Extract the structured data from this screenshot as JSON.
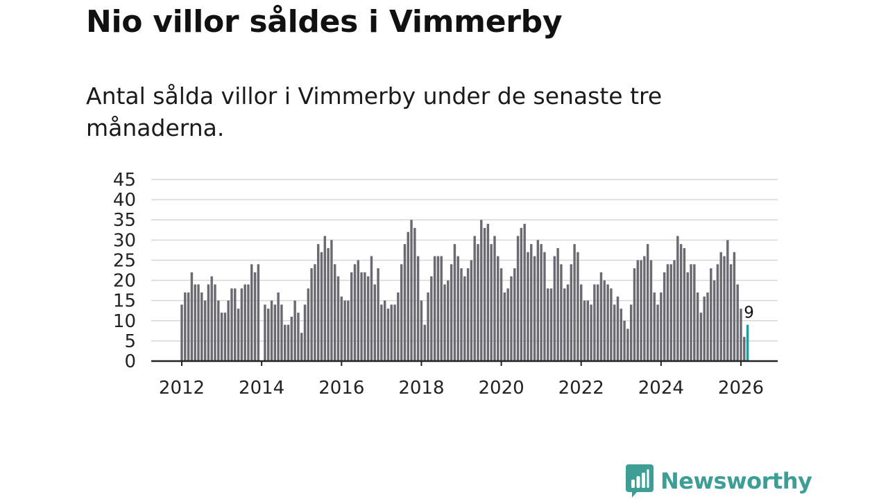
{
  "title": "Nio villor såldes i Vimmerby",
  "subtitle": "Antal sålda villor i Vimmerby under de senaste tre månaderna.",
  "brand": {
    "name": "Newsworthy",
    "icon": "bar-chart-badge-icon",
    "color": "#3d9e96"
  },
  "colors": {
    "bar": "#6b6a70",
    "highlight": "#1f9d9a",
    "grid": "#d6d6d6",
    "axis": "#222222"
  },
  "chart_data": {
    "type": "bar",
    "title": "Nio villor såldes i Vimmerby",
    "xlabel": "",
    "ylabel": "",
    "ylim": [
      0,
      45
    ],
    "y_ticks": [
      0,
      5,
      10,
      15,
      20,
      25,
      30,
      35,
      40,
      45
    ],
    "x_ticks": [
      "2012",
      "2014",
      "2016",
      "2018",
      "2020",
      "2022",
      "2024",
      "2026"
    ],
    "grid": true,
    "start": "2012-01",
    "interval": "month",
    "values": [
      14,
      17,
      17,
      22,
      19,
      19,
      17,
      15,
      19,
      21,
      19,
      15,
      12,
      12,
      15,
      18,
      18,
      13,
      18,
      19,
      19,
      24,
      22,
      24,
      0,
      14,
      13,
      15,
      14,
      17,
      14,
      9,
      9,
      11,
      15,
      12,
      7,
      14,
      18,
      23,
      24,
      29,
      27,
      31,
      28,
      30,
      24,
      21,
      16,
      15,
      15,
      22,
      24,
      25,
      22,
      22,
      21,
      26,
      19,
      23,
      14,
      15,
      13,
      14,
      14,
      17,
      24,
      29,
      32,
      35,
      33,
      26,
      15,
      9,
      17,
      21,
      26,
      26,
      26,
      19,
      20,
      24,
      29,
      26,
      23,
      21,
      23,
      25,
      31,
      29,
      35,
      33,
      34,
      29,
      31,
      26,
      23,
      17,
      18,
      21,
      23,
      31,
      33,
      34,
      27,
      29,
      26,
      30,
      29,
      27,
      18,
      18,
      26,
      28,
      24,
      18,
      19,
      24,
      29,
      27,
      19,
      15,
      15,
      14,
      19,
      19,
      22,
      20,
      19,
      18,
      14,
      16,
      13,
      10,
      8,
      14,
      23,
      25,
      25,
      26,
      29,
      25,
      17,
      14,
      17,
      22,
      24,
      24,
      25,
      31,
      29,
      28,
      22,
      24,
      24,
      17,
      12,
      16,
      17,
      23,
      20,
      24,
      27,
      26,
      30,
      24,
      27,
      19,
      13,
      6,
      9
    ],
    "highlight_index": 170,
    "annotation": {
      "index": 170,
      "label": "9"
    }
  }
}
